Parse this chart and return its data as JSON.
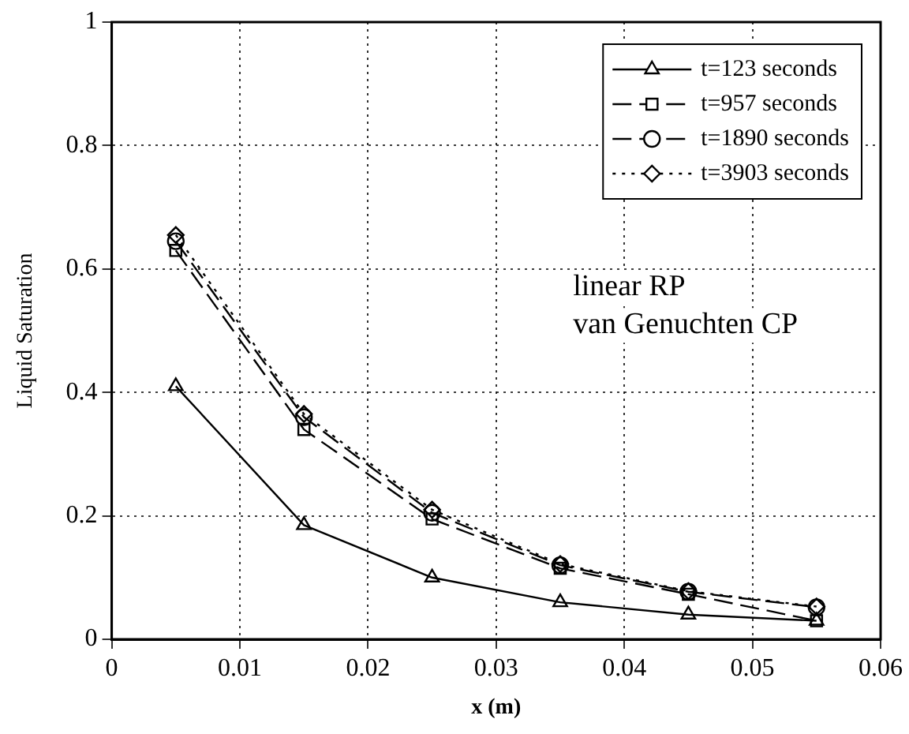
{
  "chart_data": {
    "type": "line",
    "xlabel": "x (m)",
    "ylabel": "Liquid Saturation",
    "x": [
      0.005,
      0.015,
      0.025,
      0.035,
      0.045,
      0.055
    ],
    "series": [
      {
        "name": "t=123 seconds",
        "color": "#000000",
        "marker": "triangle",
        "line_style": "solid",
        "values": [
          0.41,
          0.185,
          0.1,
          0.06,
          0.04,
          0.03
        ]
      },
      {
        "name": "t=957 seconds",
        "color": "#000000",
        "marker": "square",
        "line_style": "dashed",
        "values": [
          0.63,
          0.34,
          0.195,
          0.115,
          0.073,
          0.03
        ]
      },
      {
        "name": "t=1890 seconds",
        "color": "#000000",
        "marker": "circle",
        "line_style": "dashed",
        "values": [
          0.645,
          0.36,
          0.205,
          0.12,
          0.077,
          0.052
        ]
      },
      {
        "name": "t=3903 seconds",
        "color": "#000000",
        "marker": "diamond",
        "line_style": "dotted",
        "values": [
          0.655,
          0.365,
          0.21,
          0.122,
          0.078,
          0.053
        ]
      }
    ],
    "xlim": [
      0,
      0.06
    ],
    "xticks": [
      0,
      0.01,
      0.02,
      0.03,
      0.04,
      0.05,
      0.06
    ],
    "ylim": [
      0,
      1
    ],
    "yticks": [
      0,
      0.2,
      0.4,
      0.6,
      0.8,
      1
    ],
    "grid": true,
    "legend": "top right",
    "annotations": [
      "linear RP",
      "van Genuchten CP"
    ]
  }
}
